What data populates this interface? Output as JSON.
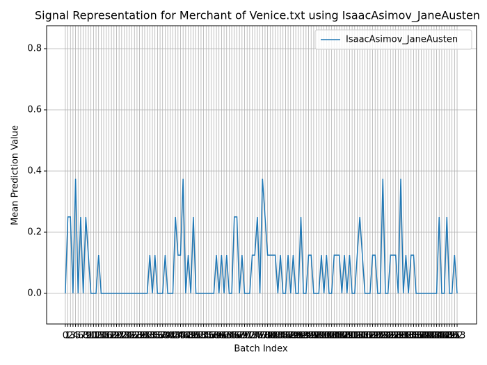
{
  "chart_data": {
    "type": "line",
    "title": "Signal Representation for Merchant of Venice.txt using IsaacAsimov_JaneAusten",
    "xlabel": "Batch Index",
    "ylabel": "Mean Prediction Value",
    "x": [
      0,
      1,
      2,
      3,
      4,
      5,
      6,
      7,
      8,
      9,
      10,
      11,
      12,
      13,
      14,
      15,
      16,
      17,
      18,
      19,
      20,
      21,
      22,
      23,
      24,
      25,
      26,
      27,
      28,
      29,
      30,
      31,
      32,
      33,
      34,
      35,
      36,
      37,
      38,
      39,
      40,
      41,
      42,
      43,
      44,
      45,
      46,
      47,
      48,
      49,
      50,
      51,
      52,
      53,
      54,
      55,
      56,
      57,
      58,
      59,
      60,
      61,
      62,
      63,
      64,
      65,
      66,
      67,
      68,
      69,
      70,
      71,
      72,
      73,
      74,
      75,
      76,
      77,
      78,
      79,
      80,
      81,
      82,
      83,
      84,
      85,
      86,
      87,
      88,
      89,
      90,
      91,
      92,
      93,
      94,
      95,
      96,
      97,
      98,
      99,
      100,
      101,
      102,
      103,
      104,
      105,
      106,
      107,
      108,
      109,
      110,
      111,
      112,
      113,
      114,
      115,
      116,
      117,
      118,
      119,
      120,
      121,
      122,
      123,
      124,
      125,
      126,
      127,
      128,
      129,
      130,
      131,
      132,
      133,
      134,
      135,
      136,
      137,
      138,
      139,
      140,
      141,
      142,
      143,
      144,
      145,
      146,
      147,
      148,
      149,
      150,
      151,
      152,
      153
    ],
    "series": [
      {
        "name": "IsaacAsimov_JaneAusten",
        "color": "#1f77b4",
        "values": [
          0,
          0.25,
          0.25,
          0,
          0.375,
          0,
          0.25,
          0,
          0.25,
          0.125,
          0,
          0,
          0,
          0.125,
          0,
          0,
          0,
          0,
          0,
          0,
          0,
          0,
          0,
          0,
          0,
          0,
          0,
          0,
          0,
          0,
          0,
          0,
          0,
          0.125,
          0,
          0.125,
          0,
          0,
          0,
          0.125,
          0,
          0,
          0,
          0.25,
          0.125,
          0.125,
          0.375,
          0,
          0.125,
          0,
          0.25,
          0,
          0,
          0,
          0,
          0,
          0,
          0,
          0,
          0.125,
          0,
          0.125,
          0,
          0.125,
          0,
          0,
          0.25,
          0.25,
          0,
          0.125,
          0,
          0,
          0,
          0.125,
          0.125,
          0.25,
          0,
          0.375,
          0.25,
          0.125,
          0.125,
          0.125,
          0.125,
          0,
          0.125,
          0,
          0,
          0.125,
          0,
          0.125,
          0,
          0,
          0.25,
          0,
          0,
          0.125,
          0.125,
          0,
          0,
          0,
          0.125,
          0,
          0.125,
          0,
          0,
          0.125,
          0.125,
          0.125,
          0,
          0.125,
          0,
          0.125,
          0,
          0,
          0.125,
          0.25,
          0.125,
          0,
          0,
          0,
          0.125,
          0.125,
          0,
          0,
          0.375,
          0,
          0,
          0.125,
          0.125,
          0.125,
          0,
          0.375,
          0,
          0.125,
          0,
          0.125,
          0.125,
          0,
          0,
          0,
          0,
          0,
          0,
          0,
          0,
          0,
          0.25,
          0,
          0,
          0.25,
          0,
          0,
          0.125,
          0
        ]
      }
    ],
    "xlim": [
      -7.3,
      160.6
    ],
    "ylim": [
      -0.1,
      0.875
    ],
    "xticks": [
      0,
      1,
      2,
      3,
      4,
      5,
      6,
      7,
      8,
      9,
      10,
      11,
      12,
      13,
      14,
      15,
      16,
      17,
      18,
      19,
      20,
      21,
      22,
      23,
      24,
      25,
      26,
      27,
      28,
      29,
      30,
      31,
      32,
      33,
      34,
      35,
      36,
      37,
      38,
      39,
      40,
      41,
      42,
      43,
      44,
      45,
      46,
      47,
      48,
      49,
      50,
      51,
      52,
      53,
      54,
      55,
      56,
      57,
      58,
      59,
      60,
      61,
      62,
      63,
      64,
      65,
      66,
      67,
      68,
      69,
      70,
      71,
      72,
      73,
      74,
      75,
      76,
      77,
      78,
      79,
      80,
      81,
      82,
      83,
      84,
      85,
      86,
      87,
      88,
      89,
      90,
      91,
      92,
      93,
      94,
      95,
      96,
      97,
      98,
      99,
      100,
      101,
      102,
      103,
      104,
      105,
      106,
      107,
      108,
      109,
      110,
      111,
      112,
      113,
      114,
      115,
      116,
      117,
      118,
      119,
      120,
      121,
      122,
      123,
      124,
      125,
      126,
      127,
      128,
      129,
      130,
      131,
      132,
      133,
      134,
      135,
      136,
      137,
      138,
      139,
      140,
      141,
      142,
      143,
      144,
      145,
      146,
      147,
      148,
      149,
      150,
      151,
      152,
      153
    ],
    "yticks": [
      {
        "value": 0,
        "label": "0.0"
      },
      {
        "value": 0.2,
        "label": "0.2"
      },
      {
        "value": 0.4,
        "label": "0.4"
      },
      {
        "value": 0.6,
        "label": "0.6"
      },
      {
        "value": 0.8,
        "label": "0.8"
      }
    ],
    "grid": true,
    "legend": "upper right"
  }
}
